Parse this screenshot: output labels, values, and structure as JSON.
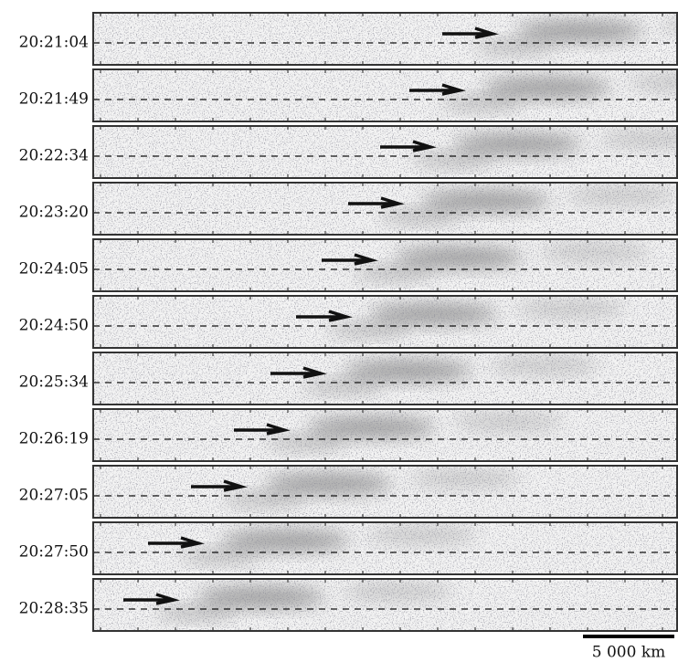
{
  "panels": {
    "times": [
      "20:21:04",
      "20:21:49",
      "20:22:34",
      "20:23:20",
      "20:24:05",
      "20:24:50",
      "20:25:34",
      "20:26:19",
      "20:27:05",
      "20:27:50",
      "20:28:35"
    ]
  },
  "scale_bar": {
    "label": "5 000 km"
  }
}
